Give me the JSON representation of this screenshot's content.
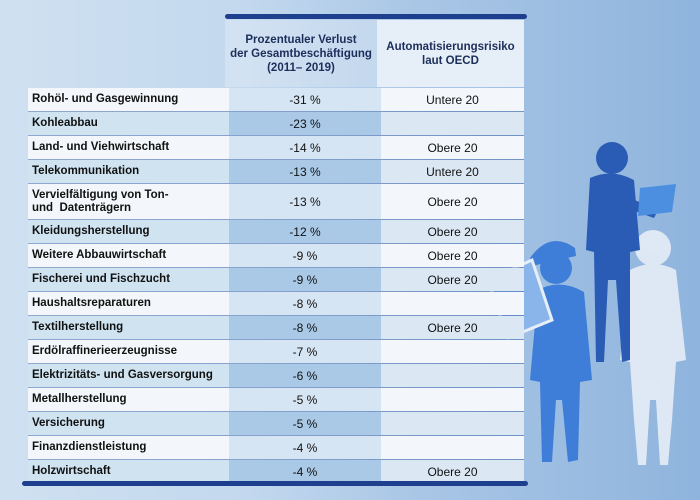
{
  "header": {
    "loss_col": [
      "Prozentualer Verlust",
      "der Gesamtbeschäftigung",
      "(2011– 2019)"
    ],
    "risk_col": [
      "Automatisierungsrisiko",
      "laut OECD"
    ]
  },
  "rows": [
    {
      "name": [
        "Rohöl- und Gasgewinnung"
      ],
      "loss": "-31 %",
      "risk": "Untere 20"
    },
    {
      "name": [
        "Kohleabbau"
      ],
      "loss": "-23 %",
      "risk": ""
    },
    {
      "name": [
        "Land- und Viehwirtschaft"
      ],
      "loss": "-14 %",
      "risk": "Obere 20"
    },
    {
      "name": [
        "Telekommunikation"
      ],
      "loss": "-13 %",
      "risk": "Untere 20"
    },
    {
      "name": [
        "Vervielfältigung von Ton-",
        "und  Datenträgern"
      ],
      "loss": "-13 %",
      "risk": "Obere 20"
    },
    {
      "name": [
        "Kleidungsherstellung"
      ],
      "loss": "-12 %",
      "risk": "Obere 20"
    },
    {
      "name": [
        "Weitere Abbauwirtschaft"
      ],
      "loss": "-9 %",
      "risk": "Obere 20"
    },
    {
      "name": [
        "Fischerei und Fischzucht"
      ],
      "loss": "-9 %",
      "risk": "Obere 20"
    },
    {
      "name": [
        "Haushaltsreparaturen"
      ],
      "loss": "-8 %",
      "risk": ""
    },
    {
      "name": [
        "Textilherstellung"
      ],
      "loss": "-8 %",
      "risk": "Obere 20"
    },
    {
      "name": [
        "Erdölraffinerieerzeugnisse"
      ],
      "loss": "-7 %",
      "risk": ""
    },
    {
      "name": [
        "Elektrizitäts- und Gasversorgung"
      ],
      "loss": "-6 %",
      "risk": ""
    },
    {
      "name": [
        "Metallherstellung"
      ],
      "loss": "-5 %",
      "risk": ""
    },
    {
      "name": [
        "Versicherung"
      ],
      "loss": "-5 %",
      "risk": ""
    },
    {
      "name": [
        "Finanzdienstleistung"
      ],
      "loss": "-4 %",
      "risk": ""
    },
    {
      "name": [
        "Holzwirtschaft"
      ],
      "loss": "-4 %",
      "risk": "Obere 20"
    }
  ]
}
